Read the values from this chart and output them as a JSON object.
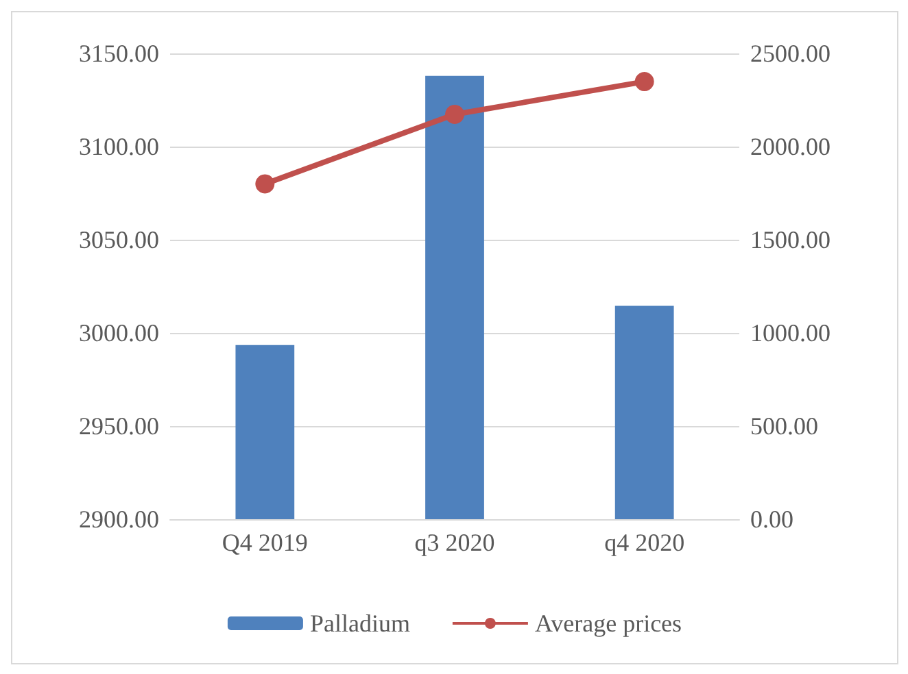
{
  "chart_data": {
    "type": "bar",
    "categories": [
      "Q4 2019",
      "q3 2020",
      "q4 2020"
    ],
    "series": [
      {
        "name": "Palladium",
        "color": "#4f81bd",
        "values": [
          2993.5,
          3138,
          3014.5
        ]
      },
      {
        "name": "Average prices",
        "type": "line",
        "axis": "y2",
        "color": "#c0504d",
        "values": [
          1800,
          2173,
          2349
        ]
      }
    ],
    "ylim": [
      2900,
      3150
    ],
    "yticks": [
      {
        "value": 2900,
        "label": "2900.00"
      },
      {
        "value": 2950,
        "label": "2950.00"
      },
      {
        "value": 3000,
        "label": "3000.00"
      },
      {
        "value": 3050,
        "label": "3050.00"
      },
      {
        "value": 3100,
        "label": "3100.00"
      },
      {
        "value": 3150,
        "label": "3150.00"
      }
    ],
    "y2lim": [
      0,
      2500
    ],
    "y2ticks": [
      {
        "value": 0,
        "label": "0.00"
      },
      {
        "value": 500,
        "label": "500.00"
      },
      {
        "value": 1000,
        "label": "1000.00"
      },
      {
        "value": 1500,
        "label": "1500.00"
      },
      {
        "value": 2000,
        "label": "2000.00"
      },
      {
        "value": 2500,
        "label": "2500.00"
      }
    ],
    "grid": "y",
    "legend": "bottom",
    "marker": "circle"
  }
}
